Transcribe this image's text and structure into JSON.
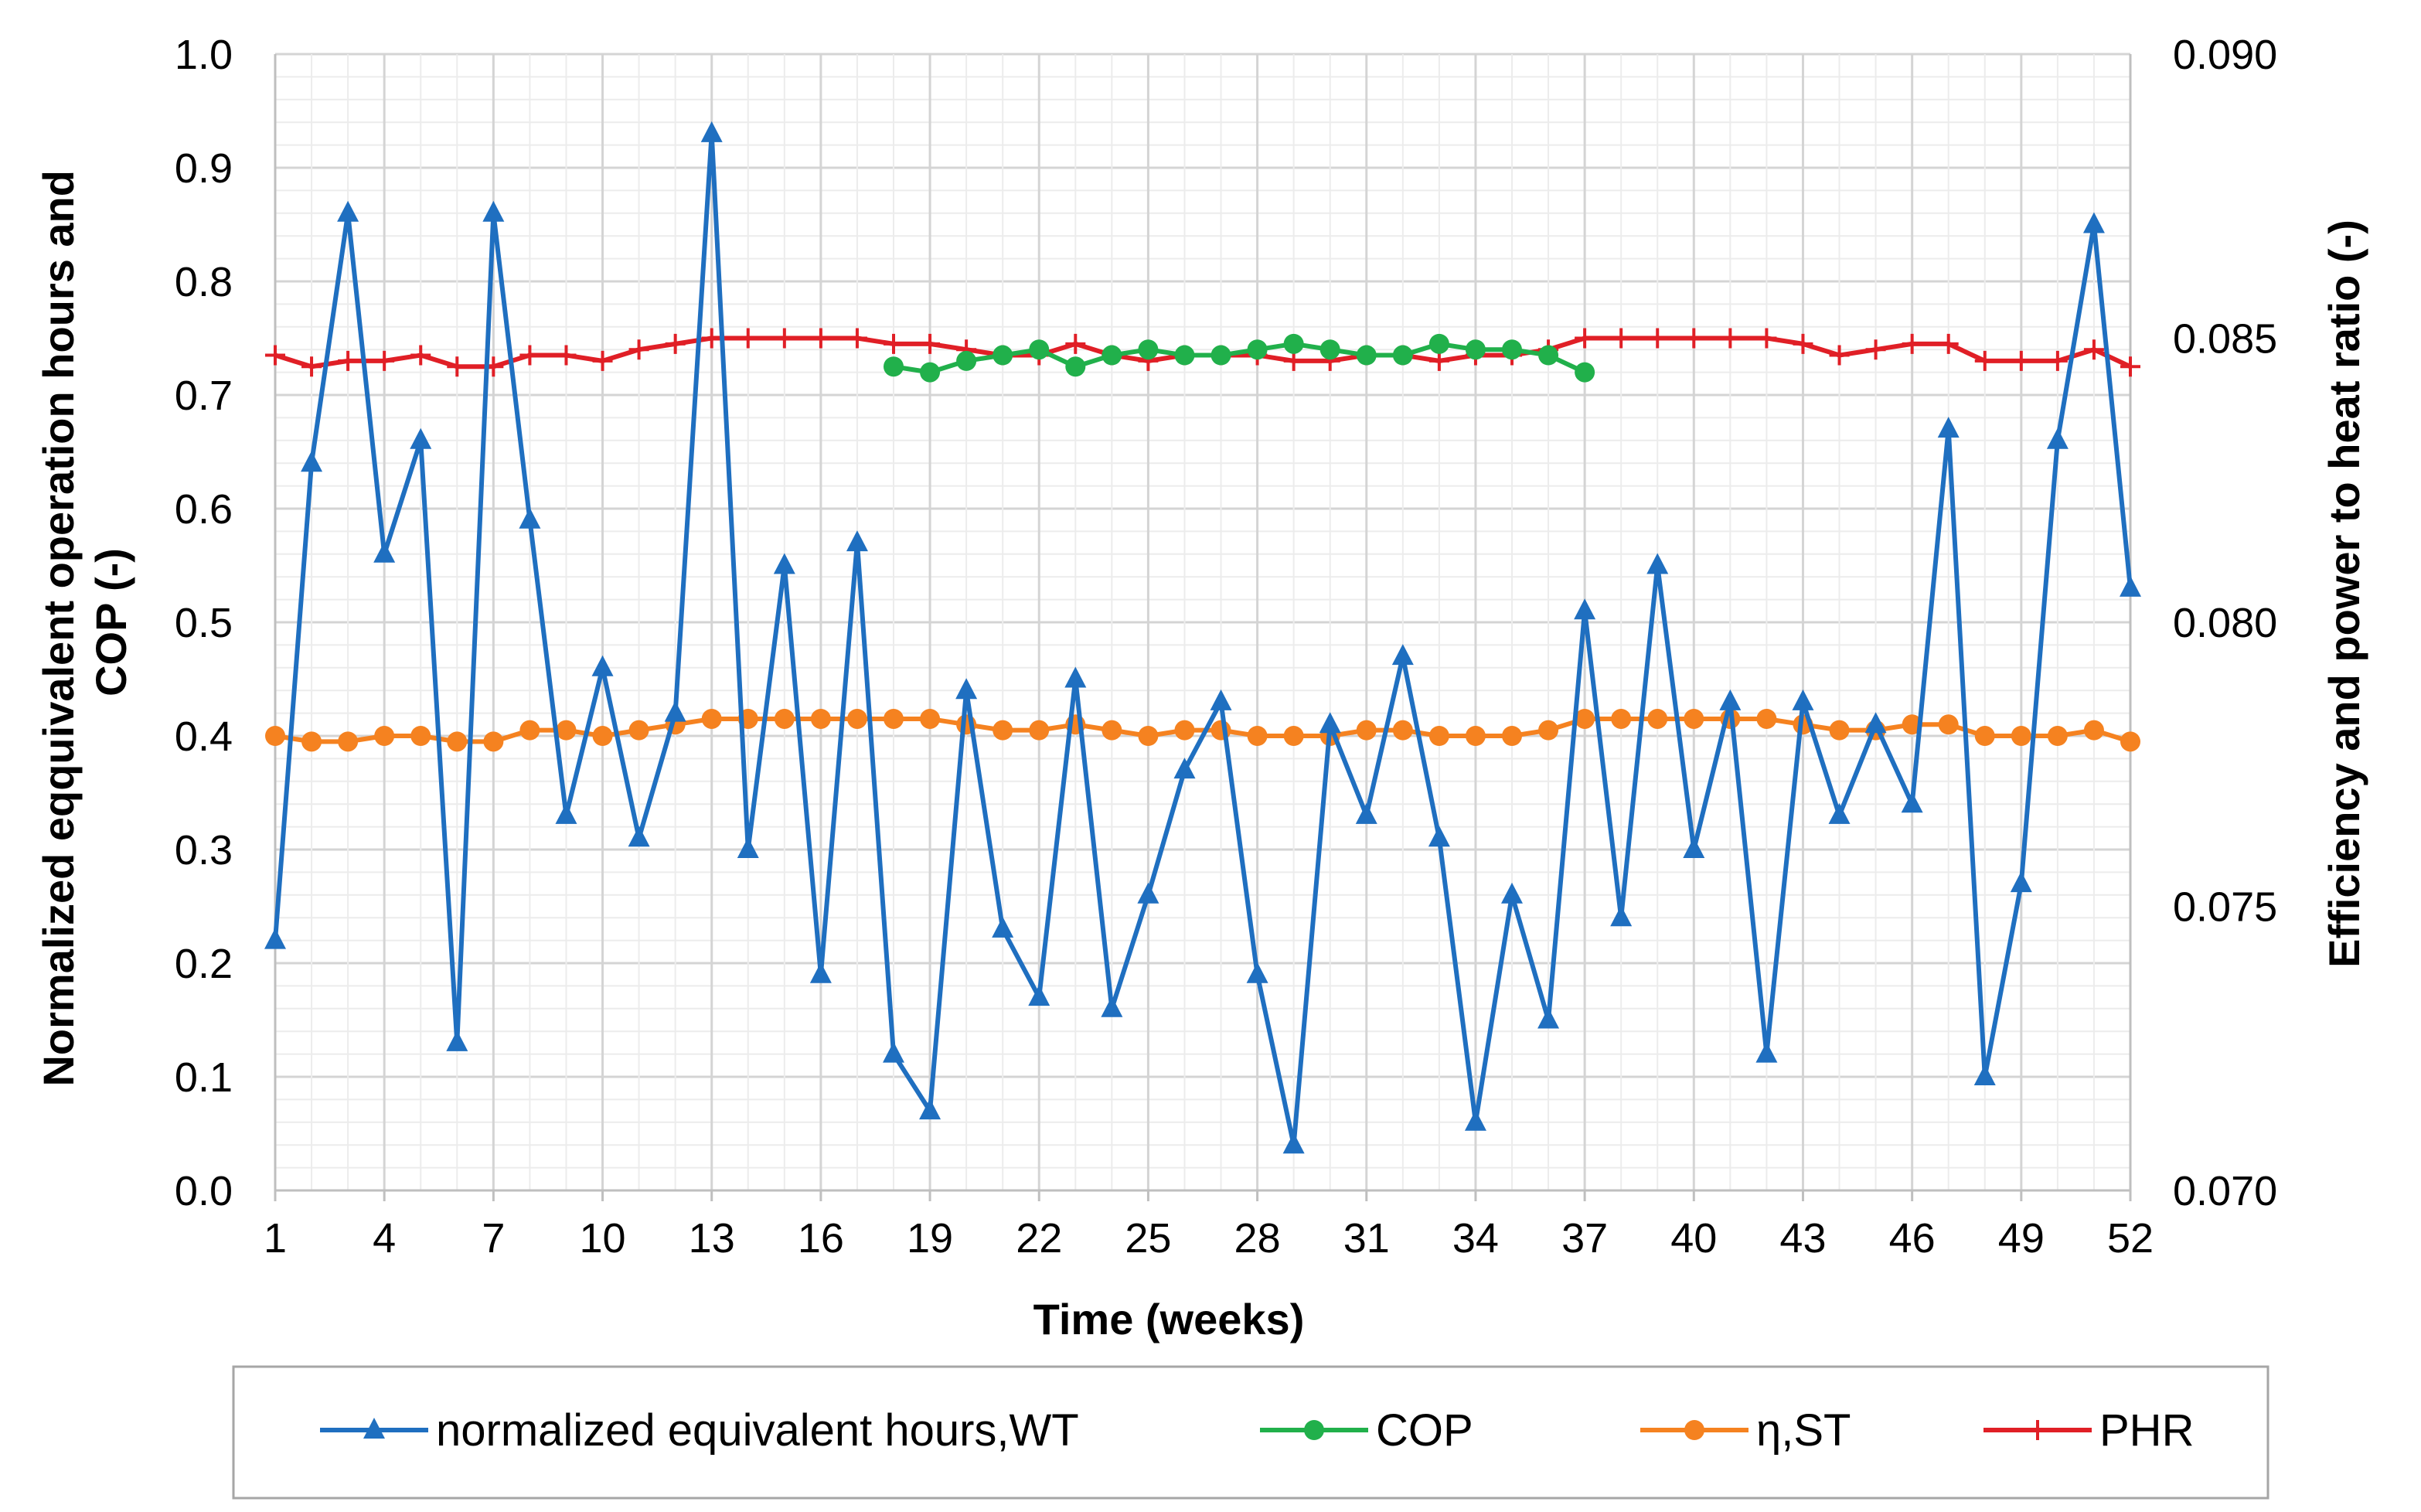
{
  "chart_data": {
    "type": "line",
    "title": "",
    "xlabel": "Time (weeks)",
    "ylabel_left": "Normalized eqquivalent operation hours and COP (-)",
    "ylabel_right": "Efficiency and power to heat ratio (-)",
    "xlim": [
      1,
      52
    ],
    "xticks": [
      "1",
      "4",
      "7",
      "10",
      "13",
      "16",
      "19",
      "22",
      "25",
      "28",
      "31",
      "34",
      "37",
      "40",
      "43",
      "46",
      "49",
      "52"
    ],
    "ylim_left": [
      0,
      1
    ],
    "yticks_left": [
      "0.0",
      "0.1",
      "0.2",
      "0.3",
      "0.4",
      "0.5",
      "0.6",
      "0.7",
      "0.8",
      "0.9",
      "1.0"
    ],
    "ylim_right": [
      0.07,
      0.09
    ],
    "yticks_right": [
      "0.070",
      "0.075",
      "0.080",
      "0.085",
      "0.090"
    ],
    "grid": true,
    "legend_position": "bottom",
    "series": [
      {
        "name": "normalized equivalent hours,WT",
        "axis": "left",
        "color": "#1f6fc0",
        "marker": "triangle",
        "x": [
          1,
          2,
          3,
          4,
          5,
          6,
          7,
          8,
          9,
          10,
          11,
          12,
          13,
          14,
          15,
          16,
          17,
          18,
          19,
          20,
          21,
          22,
          23,
          24,
          25,
          26,
          27,
          28,
          29,
          30,
          31,
          32,
          33,
          34,
          35,
          36,
          37,
          38,
          39,
          40,
          41,
          42,
          43,
          44,
          45,
          46,
          47,
          48,
          49,
          50,
          51,
          52
        ],
        "values": [
          0.22,
          0.64,
          0.86,
          0.56,
          0.66,
          0.13,
          0.86,
          0.59,
          0.33,
          0.46,
          0.31,
          0.42,
          0.93,
          0.3,
          0.55,
          0.19,
          0.57,
          0.12,
          0.07,
          0.44,
          0.23,
          0.17,
          0.45,
          0.16,
          0.26,
          0.37,
          0.43,
          0.19,
          0.04,
          0.41,
          0.33,
          0.47,
          0.31,
          0.06,
          0.26,
          0.15,
          0.51,
          0.24,
          0.55,
          0.3,
          0.43,
          0.12,
          0.43,
          0.33,
          0.41,
          0.34,
          0.67,
          0.1,
          0.27,
          0.66,
          0.85,
          0.53
        ]
      },
      {
        "name": "COP",
        "axis": "left",
        "color": "#21b04b",
        "marker": "circle",
        "x": [
          18,
          19,
          20,
          21,
          22,
          23,
          24,
          25,
          26,
          27,
          28,
          29,
          30,
          31,
          32,
          33,
          34,
          35,
          36,
          37
        ],
        "values": [
          0.725,
          0.72,
          0.73,
          0.735,
          0.74,
          0.725,
          0.735,
          0.74,
          0.735,
          0.735,
          0.74,
          0.745,
          0.74,
          0.735,
          0.735,
          0.745,
          0.74,
          0.74,
          0.735,
          0.72
        ]
      },
      {
        "name": "η,ST",
        "axis": "right",
        "color": "#f58220",
        "marker": "circle",
        "x": [
          1,
          2,
          3,
          4,
          5,
          6,
          7,
          8,
          9,
          10,
          11,
          12,
          13,
          14,
          15,
          16,
          17,
          18,
          19,
          20,
          21,
          22,
          23,
          24,
          25,
          26,
          27,
          28,
          29,
          30,
          31,
          32,
          33,
          34,
          35,
          36,
          37,
          38,
          39,
          40,
          41,
          42,
          43,
          44,
          45,
          46,
          47,
          48,
          49,
          50,
          51,
          52
        ],
        "values": [
          0.078,
          0.0779,
          0.0779,
          0.078,
          0.078,
          0.0779,
          0.0779,
          0.0781,
          0.0781,
          0.078,
          0.0781,
          0.0782,
          0.0783,
          0.0783,
          0.0783,
          0.0783,
          0.0783,
          0.0783,
          0.0783,
          0.0782,
          0.0781,
          0.0781,
          0.0782,
          0.0781,
          0.078,
          0.0781,
          0.0781,
          0.078,
          0.078,
          0.078,
          0.0781,
          0.0781,
          0.078,
          0.078,
          0.078,
          0.0781,
          0.0783,
          0.0783,
          0.0783,
          0.0783,
          0.0783,
          0.0783,
          0.0782,
          0.0781,
          0.0781,
          0.0782,
          0.0782,
          0.078,
          0.078,
          0.078,
          0.0781,
          0.0779
        ]
      },
      {
        "name": "PHR",
        "axis": "right",
        "color": "#e01f26",
        "marker": "plus",
        "x": [
          1,
          2,
          3,
          4,
          5,
          6,
          7,
          8,
          9,
          10,
          11,
          12,
          13,
          14,
          15,
          16,
          17,
          18,
          19,
          20,
          21,
          22,
          23,
          24,
          25,
          26,
          27,
          28,
          29,
          30,
          31,
          32,
          33,
          34,
          35,
          36,
          37,
          38,
          39,
          40,
          41,
          42,
          43,
          44,
          45,
          46,
          47,
          48,
          49,
          50,
          51,
          52
        ],
        "values": [
          0.0847,
          0.0845,
          0.0846,
          0.0846,
          0.0847,
          0.0845,
          0.0845,
          0.0847,
          0.0847,
          0.0846,
          0.0848,
          0.0849,
          0.085,
          0.085,
          0.085,
          0.085,
          0.085,
          0.0849,
          0.0849,
          0.0848,
          0.0847,
          0.0847,
          0.0849,
          0.0847,
          0.0846,
          0.0847,
          0.0847,
          0.0847,
          0.0846,
          0.0846,
          0.0847,
          0.0847,
          0.0846,
          0.0847,
          0.0847,
          0.0848,
          0.085,
          0.085,
          0.085,
          0.085,
          0.085,
          0.085,
          0.0849,
          0.0847,
          0.0848,
          0.0849,
          0.0849,
          0.0846,
          0.0846,
          0.0846,
          0.0848,
          0.0845
        ]
      }
    ]
  }
}
